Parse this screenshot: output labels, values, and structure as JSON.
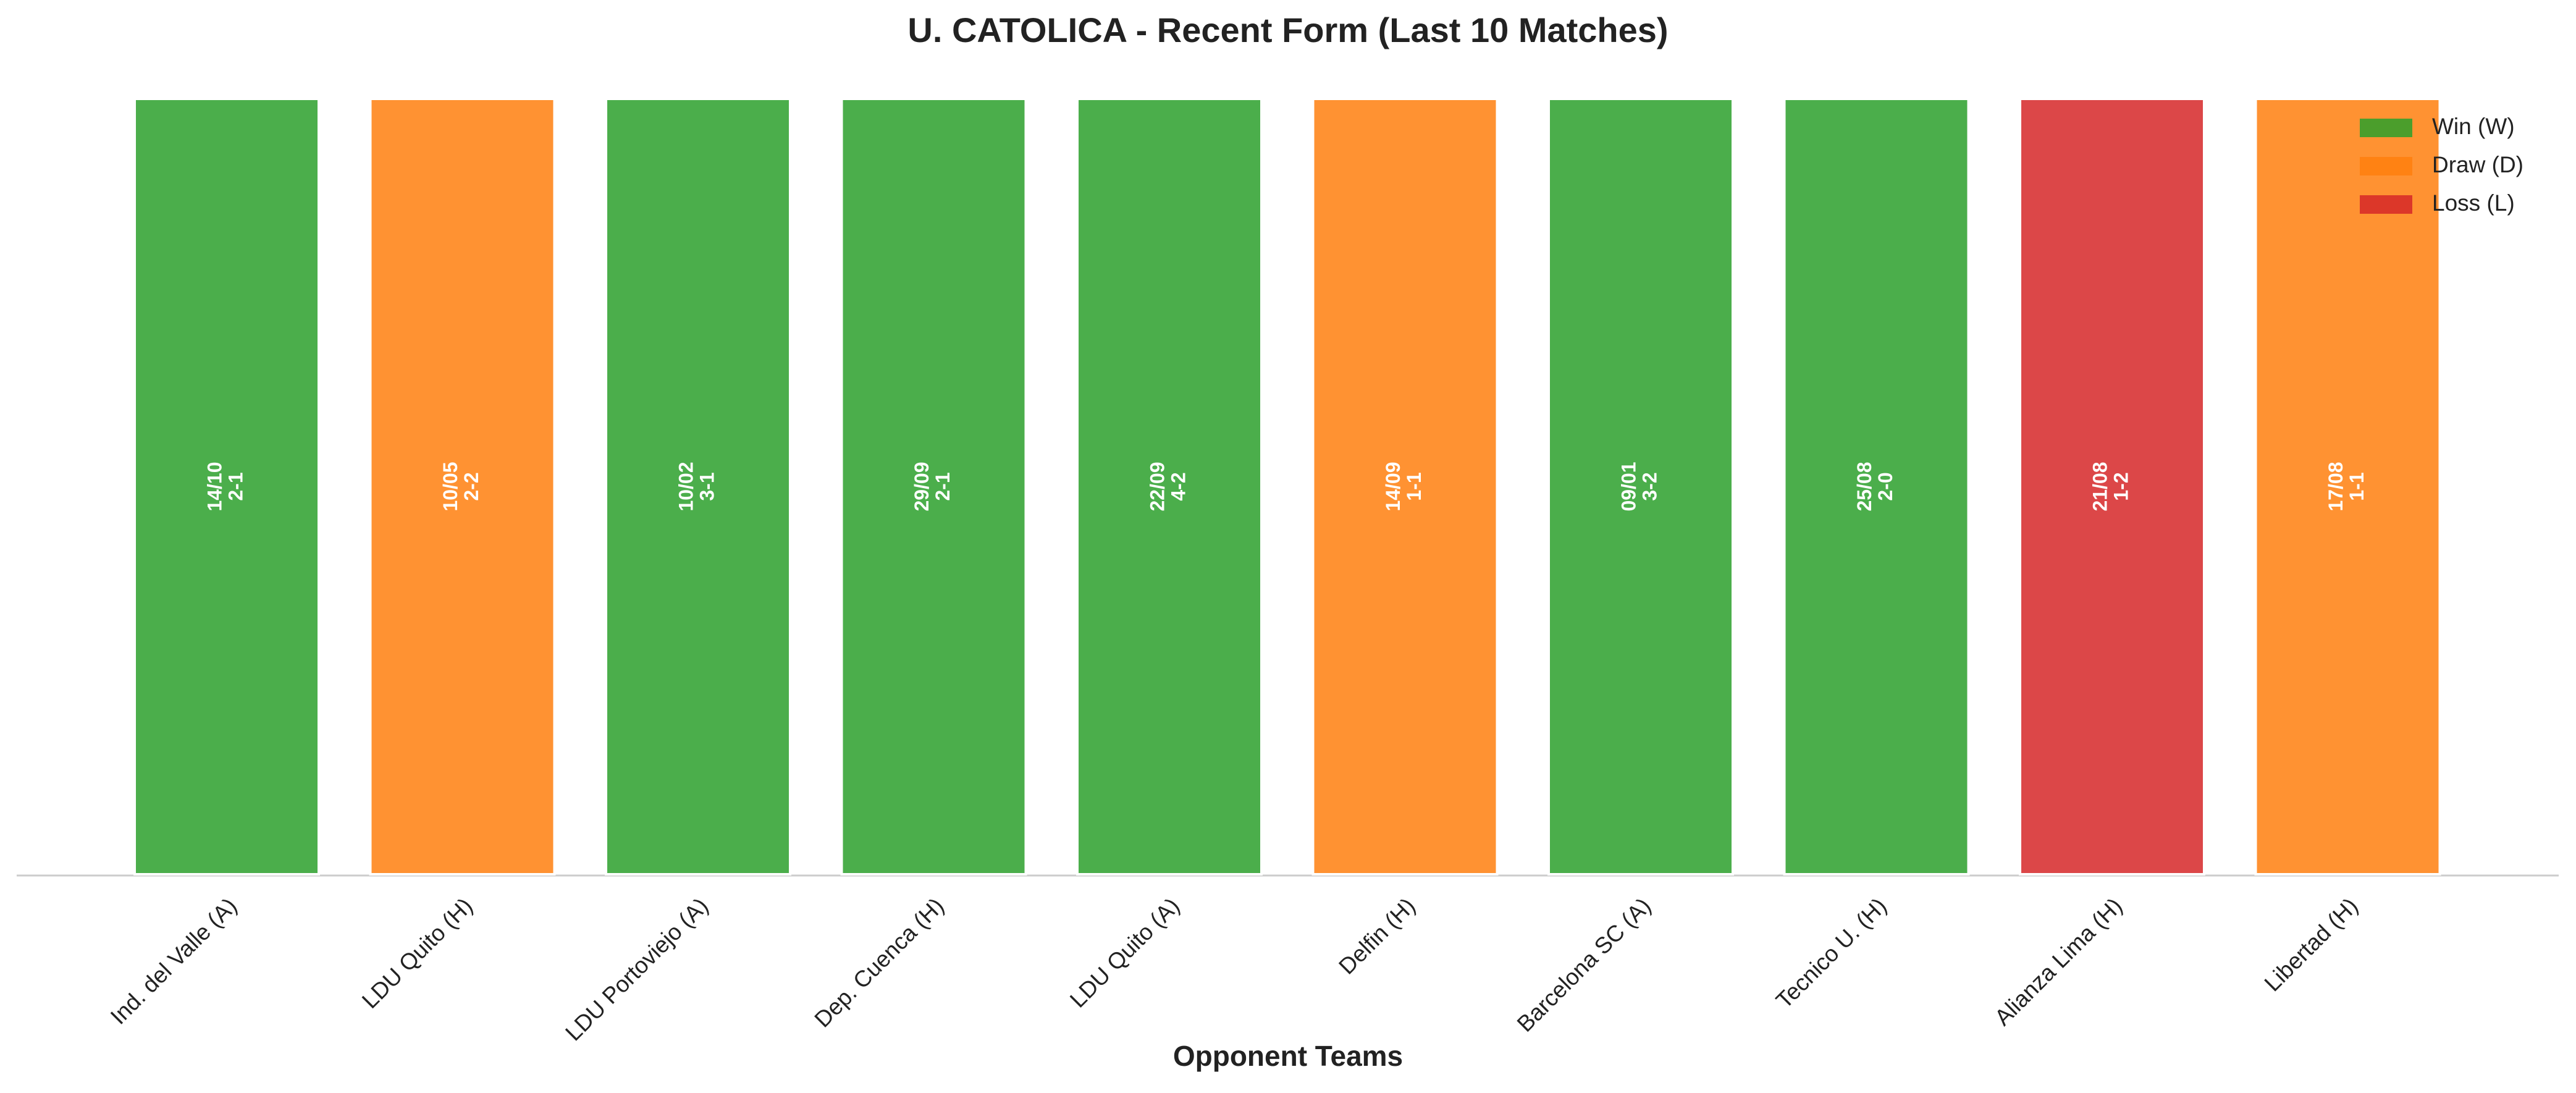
{
  "chart_data": {
    "type": "bar",
    "title": "U. CATOLICA - Recent Form (Last 10 Matches)",
    "xlabel": "Opponent Teams",
    "categories": [
      "Ind. del Valle (A)",
      "LDU Quito (H)",
      "LDU Portoviejo (A)",
      "Dep. Cuenca (H)",
      "LDU Quito (A)",
      "Delfin (H)",
      "Barcelona SC (A)",
      "Tecnico U. (H)",
      "Alianza Lima (H)",
      "Libertad (H)"
    ],
    "values": [
      1,
      1,
      1,
      1,
      1,
      1,
      1,
      1,
      1,
      1
    ],
    "colors": [
      "#2ca02c",
      "#ff7f0e",
      "#2ca02c",
      "#2ca02c",
      "#2ca02c",
      "#ff7f0e",
      "#2ca02c",
      "#2ca02c",
      "#d62728",
      "#ff7f0e"
    ],
    "dates": [
      "14/10",
      "10/05",
      "10/02",
      "29/09",
      "22/09",
      "14/09",
      "09/01",
      "25/08",
      "21/08",
      "17/08"
    ],
    "scores": [
      "2-1",
      "2-2",
      "3-1",
      "2-1",
      "4-2",
      "1-1",
      "3-2",
      "2-0",
      "1-2",
      "1-1"
    ],
    "ylim": [
      0,
      1
    ],
    "legend_position": "upper right",
    "legend": [
      {
        "name": "Win (W)",
        "color": "#2ca02c"
      },
      {
        "name": "Draw (D)",
        "color": "#ff7f0e"
      },
      {
        "name": "Loss (L)",
        "color": "#d62728"
      }
    ]
  }
}
